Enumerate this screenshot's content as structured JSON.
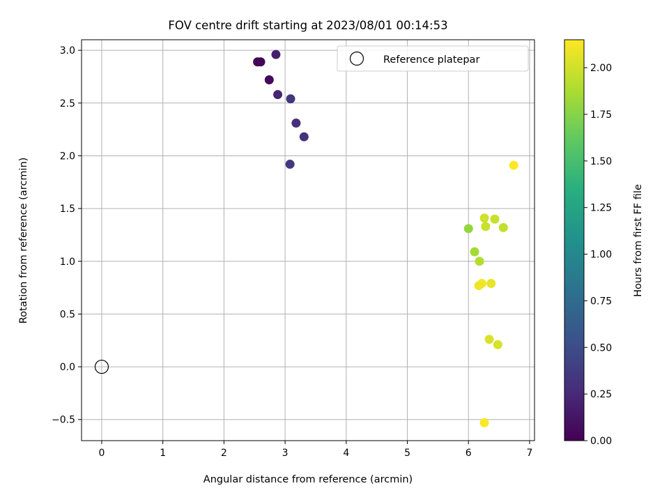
{
  "chart_data": {
    "type": "scatter",
    "title": "FOV centre drift starting at 2023/08/01 00:14:53",
    "xlabel": "Angular distance from reference (arcmin)",
    "ylabel": "Rotation from reference (arcmin)",
    "xlim": [
      -0.33,
      7.08
    ],
    "ylim": [
      -0.7,
      3.1
    ],
    "xticks": [
      0,
      1,
      2,
      3,
      4,
      5,
      6,
      7
    ],
    "xtick_labels": [
      "0",
      "1",
      "2",
      "3",
      "4",
      "5",
      "6",
      "7"
    ],
    "yticks": [
      -0.5,
      0.0,
      0.5,
      1.0,
      1.5,
      2.0,
      2.5,
      3.0
    ],
    "ytick_labels": [
      "−0.5",
      "0.0",
      "0.5",
      "1.0",
      "1.5",
      "2.0",
      "2.5",
      "3.0"
    ],
    "grid": true,
    "legend": {
      "position": "upper right",
      "entries": [
        "Reference platepar"
      ]
    },
    "reference_point": {
      "x": 0,
      "y": 0,
      "label": "Reference platepar"
    },
    "colorbar": {
      "label": "Hours from first FF file",
      "colormap": "viridis",
      "range": [
        0.0,
        2.15
      ],
      "ticks": [
        0.0,
        0.25,
        0.5,
        0.75,
        1.0,
        1.25,
        1.5,
        1.75,
        2.0
      ],
      "tick_labels": [
        "0.00",
        "0.25",
        "0.50",
        "0.75",
        "1.00",
        "1.25",
        "1.50",
        "1.75",
        "2.00"
      ]
    },
    "points": [
      {
        "x": 2.55,
        "y": 2.89,
        "hours": 0.02
      },
      {
        "x": 2.6,
        "y": 2.89,
        "hours": 0.03
      },
      {
        "x": 2.74,
        "y": 2.72,
        "hours": 0.05
      },
      {
        "x": 2.85,
        "y": 2.96,
        "hours": 0.18
      },
      {
        "x": 2.88,
        "y": 2.58,
        "hours": 0.22
      },
      {
        "x": 3.09,
        "y": 2.54,
        "hours": 0.33
      },
      {
        "x": 3.18,
        "y": 2.31,
        "hours": 0.28
      },
      {
        "x": 3.31,
        "y": 2.18,
        "hours": 0.31
      },
      {
        "x": 3.08,
        "y": 1.92,
        "hours": 0.34
      },
      {
        "x": 6.74,
        "y": 1.91,
        "hours": 2.15
      },
      {
        "x": 6.26,
        "y": 1.41,
        "hours": 2.0
      },
      {
        "x": 6.43,
        "y": 1.4,
        "hours": 1.97
      },
      {
        "x": 6.57,
        "y": 1.32,
        "hours": 1.96
      },
      {
        "x": 6.28,
        "y": 1.33,
        "hours": 1.98
      },
      {
        "x": 6.0,
        "y": 1.31,
        "hours": 1.8
      },
      {
        "x": 6.1,
        "y": 1.09,
        "hours": 1.85
      },
      {
        "x": 6.18,
        "y": 1.0,
        "hours": 1.9
      },
      {
        "x": 6.22,
        "y": 0.79,
        "hours": 2.12
      },
      {
        "x": 6.37,
        "y": 0.79,
        "hours": 2.08
      },
      {
        "x": 6.17,
        "y": 0.77,
        "hours": 2.1
      },
      {
        "x": 6.34,
        "y": 0.26,
        "hours": 2.03
      },
      {
        "x": 6.48,
        "y": 0.21,
        "hours": 2.02
      },
      {
        "x": 6.26,
        "y": -0.53,
        "hours": 2.14
      }
    ]
  }
}
